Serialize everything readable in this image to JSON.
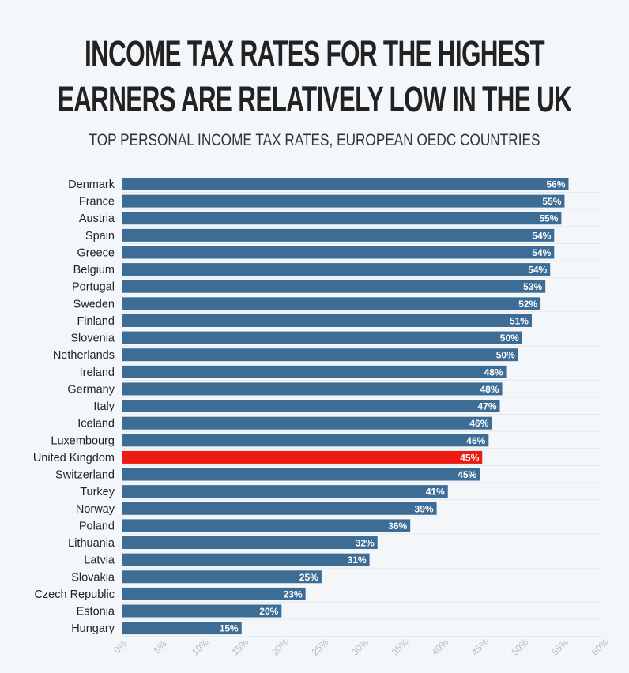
{
  "title_lines": [
    "INCOME TAX RATES FOR THE HIGHEST",
    "EARNERS ARE RELATIVELY LOW IN THE UK"
  ],
  "subtitle": "TOP PERSONAL INCOME TAX RATES, EUROPEAN OEDC COUNTRIES",
  "colors": {
    "bar": "#3d6d95",
    "highlight": "#ec1c13",
    "grid": "#e3e8ed",
    "tick": "#b5bcc4"
  },
  "chart_data": {
    "type": "bar",
    "orientation": "horizontal",
    "title": "INCOME TAX RATES FOR THE HIGHEST EARNERS ARE RELATIVELY LOW IN THE UK",
    "subtitle": "TOP PERSONAL INCOME TAX RATES, EUROPEAN OEDC COUNTRIES",
    "categories": [
      "Denmark",
      "France",
      "Austria",
      "Spain",
      "Greece",
      "Belgium",
      "Portugal",
      "Sweden",
      "Finland",
      "Slovenia",
      "Netherlands",
      "Ireland",
      "Germany",
      "Italy",
      "Iceland",
      "Luxembourg",
      "United Kingdom",
      "Switzerland",
      "Turkey",
      "Norway",
      "Poland",
      "Lithuania",
      "Latvia",
      "Slovakia",
      "Czech Republic",
      "Estonia",
      "Hungary"
    ],
    "values": [
      55.8,
      55.3,
      54.9,
      54.0,
      54.0,
      53.5,
      52.9,
      52.3,
      51.2,
      50.0,
      49.5,
      48.0,
      47.5,
      47.2,
      46.2,
      45.8,
      45.0,
      44.7,
      40.7,
      39.3,
      36.0,
      31.9,
      30.9,
      24.9,
      22.9,
      19.9,
      14.9
    ],
    "labels": [
      "56%",
      "55%",
      "55%",
      "54%",
      "54%",
      "54%",
      "53%",
      "52%",
      "51%",
      "50%",
      "50%",
      "48%",
      "48%",
      "47%",
      "46%",
      "46%",
      "45%",
      "45%",
      "41%",
      "39%",
      "36%",
      "32%",
      "31%",
      "25%",
      "23%",
      "20%",
      "15%"
    ],
    "highlight": "United Kingdom",
    "xlim": [
      0,
      60
    ],
    "xticks": [
      "0%",
      "5%",
      "10%",
      "15%",
      "20%",
      "25%",
      "30%",
      "35%",
      "40%",
      "45%",
      "50%",
      "55%",
      "60%"
    ],
    "xlabel": "",
    "ylabel": "",
    "grid": true
  }
}
